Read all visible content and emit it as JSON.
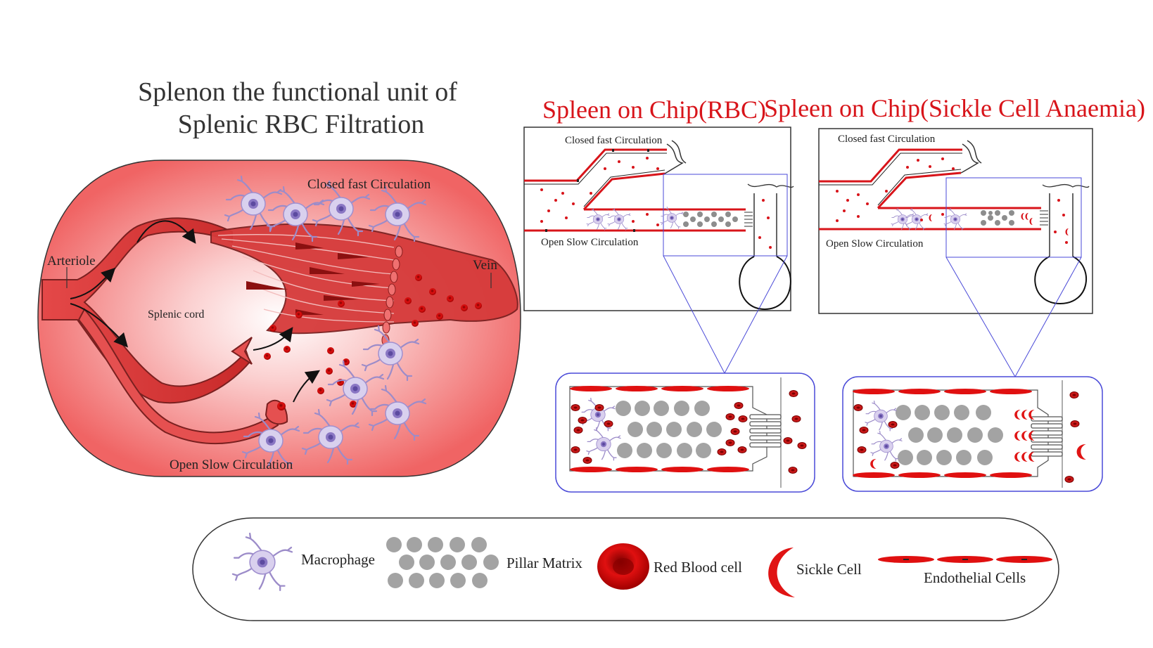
{
  "diagram": {
    "title_line1": "Splenon the functional unit of",
    "title_line2": "Splenic RBC Filtration",
    "splenon": {
      "arteriole": "Arteriole",
      "vein": "Vein",
      "splenic_cord": "Splenic cord",
      "closed_fast": "Closed fast Circulation",
      "open_slow": "Open Slow Circulation"
    },
    "chip_rbc": {
      "title": "Spleen on Chip(RBC)",
      "closed_fast": "Closed fast Circulation",
      "open_slow": "Open Slow Circulation"
    },
    "chip_sickle": {
      "title": "Spleen on Chip(Sickle Cell Anaemia)",
      "closed_fast": "Closed fast Circulation",
      "open_slow": "Open Slow Circulation"
    },
    "legend": {
      "macrophage": "Macrophage",
      "pillar_matrix": "Pillar Matrix",
      "red_blood_cell": "Red Blood cell",
      "sickle_cell": "Sickle Cell",
      "endothelial_cells": "Endothelial Cells"
    }
  },
  "colors": {
    "title_red": "#d8141a",
    "blood_red": "#d8141a",
    "dark_red": "#8b1a1a",
    "pillar_grey": "#9a9a9a",
    "macrophage_purple": "#b3a6d6",
    "frame_blue": "#4a4ad8"
  },
  "icons": [
    "macrophage-icon",
    "pillar-matrix-icon",
    "red-blood-cell-icon",
    "sickle-cell-icon",
    "endothelial-cells-icon"
  ]
}
